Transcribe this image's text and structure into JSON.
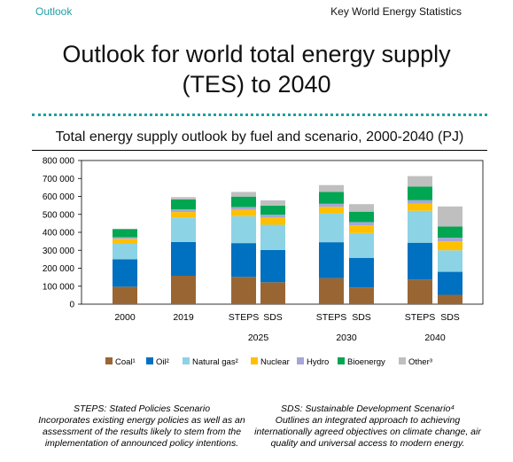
{
  "header": {
    "section_label": "Outlook",
    "doc_title": "Key World Energy Statistics"
  },
  "page_title_line1": "Outlook for world total energy supply",
  "page_title_line2": "(TES) to 2040",
  "chart_data": {
    "type": "bar",
    "stacked": true,
    "title": "Total energy supply outlook by fuel and scenario, 2000-2040 (PJ)",
    "xlabel": "",
    "ylabel": "",
    "ylim": [
      0,
      800000
    ],
    "yticks": [
      0,
      100000,
      200000,
      300000,
      400000,
      500000,
      600000,
      700000,
      800000
    ],
    "ytick_labels": [
      "0",
      "100 000",
      "200 000",
      "300 000",
      "400 000",
      "500 000",
      "600 000",
      "700 000",
      "800 000"
    ],
    "grid": false,
    "legend_position": "bottom",
    "categories": [
      "2000",
      "2019",
      "STEPS",
      "SDS",
      "STEPS",
      "SDS",
      "STEPS",
      "SDS"
    ],
    "group_labels": [
      {
        "label": "2025",
        "categories": [
          2,
          3
        ]
      },
      {
        "label": "2030",
        "categories": [
          4,
          5
        ]
      },
      {
        "label": "2040",
        "categories": [
          6,
          7
        ]
      }
    ],
    "series": [
      {
        "name": "Coal¹",
        "color": "#996633",
        "values": [
          97000,
          158000,
          152000,
          122000,
          145000,
          93000,
          137000,
          52000
        ]
      },
      {
        "name": "Oil²",
        "color": "#0070c0",
        "values": [
          153000,
          188000,
          188000,
          180000,
          200000,
          165000,
          205000,
          128000
        ]
      },
      {
        "name": "Natural gas²",
        "color": "#8dd3e6",
        "values": [
          86000,
          137000,
          150000,
          140000,
          160000,
          138000,
          178000,
          120000
        ]
      },
      {
        "name": "Nuclear",
        "color": "#ffc000",
        "values": [
          28000,
          30000,
          35000,
          40000,
          37000,
          43000,
          40000,
          50000
        ]
      },
      {
        "name": "Hydro",
        "color": "#a6a6d9",
        "values": [
          9000,
          15000,
          16000,
          16000,
          17000,
          18000,
          19000,
          20000
        ]
      },
      {
        "name": "Bioenergy",
        "color": "#00a651",
        "values": [
          45000,
          55000,
          58000,
          50000,
          66000,
          58000,
          76000,
          62000
        ]
      },
      {
        "name": "Other³",
        "color": "#bfbfbf",
        "values": [
          2000,
          13000,
          26000,
          30000,
          38000,
          42000,
          58000,
          112000
        ]
      }
    ]
  },
  "footnotes": {
    "left_head": "STEPS: Stated Policies Scenario",
    "left_body": "Incorporates existing energy policies as well as an assessment of the results likely to stem from the implementation of announced policy intentions.",
    "right_head": "SDS: Sustainable Development Scenario⁴",
    "right_body": "Outlines an integrated approach to achieving internationally agreed objectives on climate change, air quality and universal access to modern energy."
  }
}
